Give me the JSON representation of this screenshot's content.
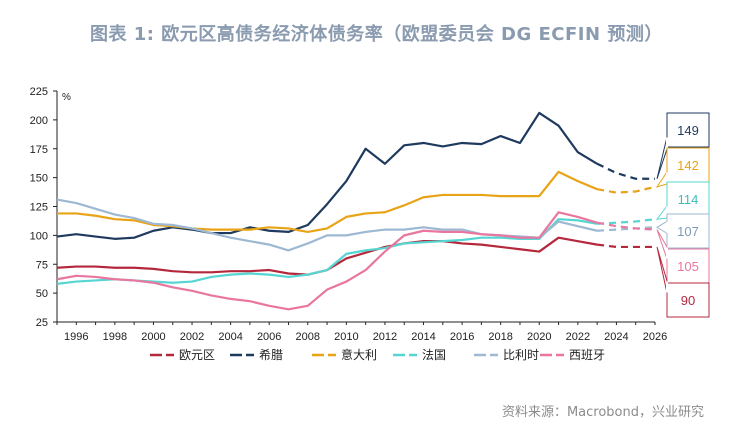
{
  "title": "图表 1:   欧元区高债务经济体债务率（欧盟委员会 DG ECFIN 预测）",
  "source": "资料来源：Macrobond，兴业研究",
  "chart_data": {
    "type": "line",
    "unit": "%",
    "xlim": [
      1995,
      2026
    ],
    "ylim": [
      25,
      225
    ],
    "x_ticks": [
      1996,
      1998,
      2000,
      2002,
      2004,
      2006,
      2008,
      2010,
      2012,
      2014,
      2016,
      2018,
      2020,
      2022,
      2024,
      2026
    ],
    "y_ticks": [
      25,
      50,
      75,
      100,
      125,
      150,
      175,
      200,
      225
    ],
    "x": [
      1995,
      1996,
      1997,
      1998,
      1999,
      2000,
      2001,
      2002,
      2003,
      2004,
      2005,
      2006,
      2007,
      2008,
      2009,
      2010,
      2011,
      2012,
      2013,
      2014,
      2015,
      2016,
      2017,
      2018,
      2019,
      2020,
      2021,
      2022,
      2023,
      2024,
      2025,
      2026
    ],
    "forecast_start_year": 2023,
    "legend_position": "bottom",
    "series": [
      {
        "name": "欧元区",
        "color": "#b5283c",
        "values": [
          72,
          73,
          73,
          72,
          72,
          71,
          69,
          68,
          68,
          69,
          69,
          70,
          67,
          66,
          70,
          80,
          85,
          90,
          93,
          95,
          95,
          93,
          92,
          90,
          88,
          86,
          98,
          95,
          92,
          90,
          90,
          90
        ],
        "callout": "90"
      },
      {
        "name": "希腊",
        "color": "#1f3a5f",
        "values": [
          99,
          101,
          99,
          97,
          98,
          104,
          107,
          105,
          102,
          102,
          107,
          104,
          103,
          109,
          127,
          147,
          175,
          162,
          178,
          180,
          177,
          180,
          179,
          186,
          180,
          206,
          195,
          172,
          162,
          154,
          149,
          149
        ],
        "callout": "149"
      },
      {
        "name": "意大利",
        "color": "#e8a317",
        "values": [
          119,
          119,
          117,
          114,
          113,
          109,
          108,
          106,
          105,
          105,
          105,
          107,
          106,
          103,
          106,
          116,
          119,
          120,
          126,
          133,
          135,
          135,
          135,
          134,
          134,
          134,
          155,
          147,
          140,
          137,
          138,
          142
        ],
        "callout": "142"
      },
      {
        "name": "法国",
        "color": "#55d6d2",
        "values": [
          58,
          60,
          61,
          62,
          61,
          60,
          59,
          60,
          64,
          66,
          67,
          66,
          64,
          66,
          70,
          84,
          87,
          89,
          93,
          94,
          95,
          96,
          98,
          98,
          97,
          97,
          114,
          113,
          110,
          111,
          112,
          114
        ],
        "callout": "114"
      },
      {
        "name": "比利时",
        "color": "#9cb8d2",
        "values": [
          131,
          128,
          123,
          118,
          115,
          110,
          109,
          106,
          102,
          98,
          95,
          92,
          87,
          93,
          100,
          100,
          103,
          105,
          105,
          107,
          105,
          105,
          101,
          100,
          99,
          98,
          112,
          108,
          104,
          105,
          106,
          107
        ],
        "callout": "107"
      },
      {
        "name": "西班牙",
        "color": "#e8769e",
        "values": [
          62,
          65,
          64,
          62,
          61,
          59,
          55,
          52,
          48,
          45,
          43,
          39,
          36,
          39,
          53,
          60,
          70,
          86,
          100,
          104,
          103,
          103,
          101,
          100,
          98,
          98,
          120,
          116,
          111,
          108,
          106,
          105
        ],
        "callout": "105"
      }
    ]
  }
}
